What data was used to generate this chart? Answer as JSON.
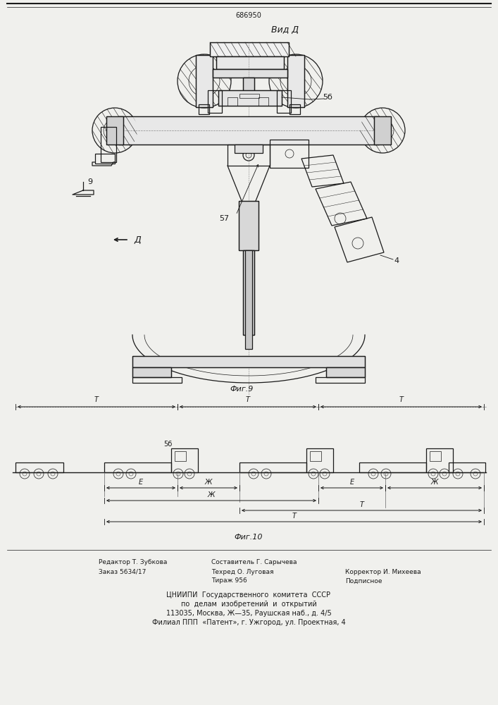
{
  "title_number": "686950",
  "title_view": "Вид Д",
  "fig9_label": "Фиг.9",
  "fig10_label": "Фиг.10",
  "arrow_label": "Д",
  "label_56": "5б",
  "label_57": "57",
  "label_4": "4",
  "label_9": "9",
  "label_58": "5б",
  "footer_left_line1": "Редактор Т. Зубкова",
  "footer_left_line2": "Заказ 5634/17",
  "footer_mid_line1": "Составитель Г. Сарычева",
  "footer_mid_line2": "Техред О. Луговая",
  "footer_mid_line3": "Тираж 956",
  "footer_right_line1": "Корректор И. Михеева",
  "footer_right_line2": "Подписное",
  "footer_org1": "ЦНИИПИ  Государственного  комитета  СССР",
  "footer_org2": "по  делам  изобретений  и  открытий",
  "footer_org3": "113035, Москва, Ж—35, Раушская наб., д. 4/5",
  "footer_org4": "Филиал ППП  «Патент», г. Ужгород, ул. Проектная, 4",
  "bg_color": "#f0f0ed",
  "line_color": "#1a1a1a"
}
